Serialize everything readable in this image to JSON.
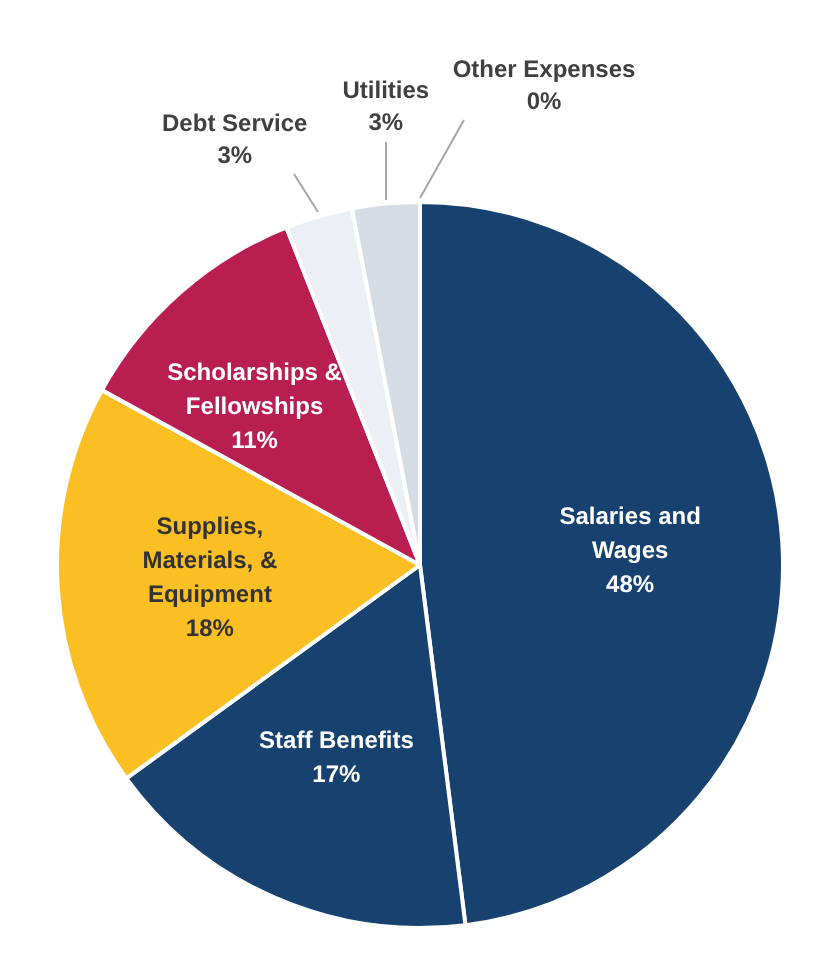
{
  "chart_data": {
    "type": "pie",
    "categories": [
      "Salaries and Wages",
      "Staff Benefits",
      "Supplies, Materials, & Equipment",
      "Scholarships & Fellowships",
      "Debt Service",
      "Utilities",
      "Other Expenses"
    ],
    "values": [
      48,
      17,
      18,
      11,
      3,
      3,
      0
    ],
    "value_labels": [
      "48%",
      "17%",
      "18%",
      "11%",
      "3%",
      "3%",
      "0%"
    ],
    "colors": [
      "#17426f",
      "#17426f",
      "#fbbf24",
      "#b81f50",
      "#eceff3",
      "#d6dce4",
      "#b4c2d4"
    ],
    "legend": false
  }
}
